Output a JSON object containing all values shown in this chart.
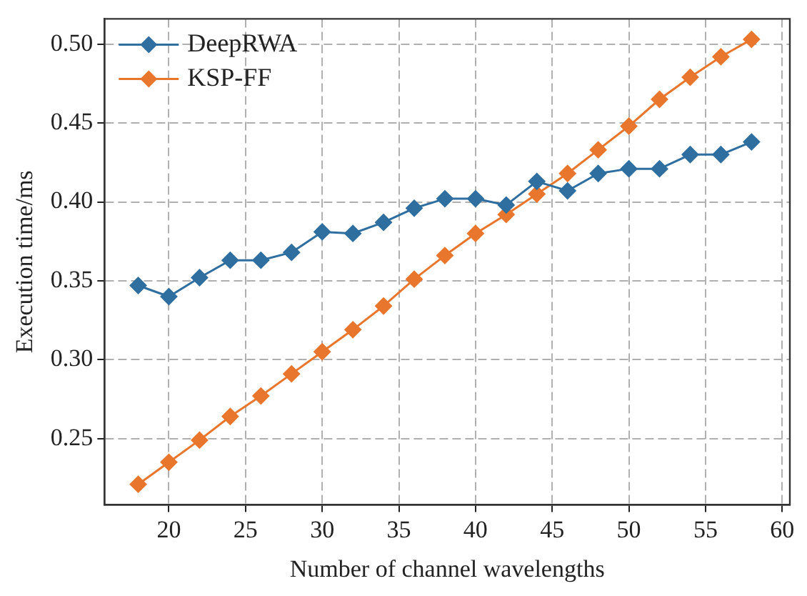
{
  "chart_data": {
    "type": "line",
    "xlabel": "Number of channel wavelengths",
    "ylabel": "Execution time/ms",
    "x": [
      18,
      20,
      22,
      24,
      26,
      28,
      30,
      32,
      34,
      36,
      38,
      40,
      42,
      44,
      46,
      48,
      50,
      52,
      54,
      56,
      58
    ],
    "series": [
      {
        "name": "DeepRWA",
        "color": "#2e6fa0",
        "values": [
          0.347,
          0.34,
          0.352,
          0.363,
          0.363,
          0.368,
          0.381,
          0.38,
          0.387,
          0.396,
          0.402,
          0.402,
          0.398,
          0.413,
          0.407,
          0.418,
          0.421,
          0.421,
          0.43,
          0.43,
          0.438
        ]
      },
      {
        "name": "KSP-FF",
        "color": "#e8762c",
        "values": [
          0.221,
          0.235,
          0.249,
          0.264,
          0.277,
          0.291,
          0.305,
          0.319,
          0.334,
          0.351,
          0.366,
          0.38,
          0.392,
          0.405,
          0.418,
          0.433,
          0.448,
          0.465,
          0.479,
          0.492,
          0.503
        ]
      }
    ],
    "xlim": [
      15.8,
      60.5
    ],
    "xticks": [
      20,
      25,
      30,
      35,
      40,
      45,
      50,
      55,
      60
    ],
    "ylim": [
      0.208,
      0.516
    ],
    "yticks": [
      0.25,
      {
        "value": 0.3,
        "label": "0.30"
      },
      0.35,
      {
        "value": 0.4,
        "label": "0.40"
      },
      0.45,
      {
        "value": 0.5,
        "label": "0.50"
      }
    ],
    "grid": true,
    "legend": "top left",
    "marker": "diamond",
    "line_style": "solid"
  }
}
